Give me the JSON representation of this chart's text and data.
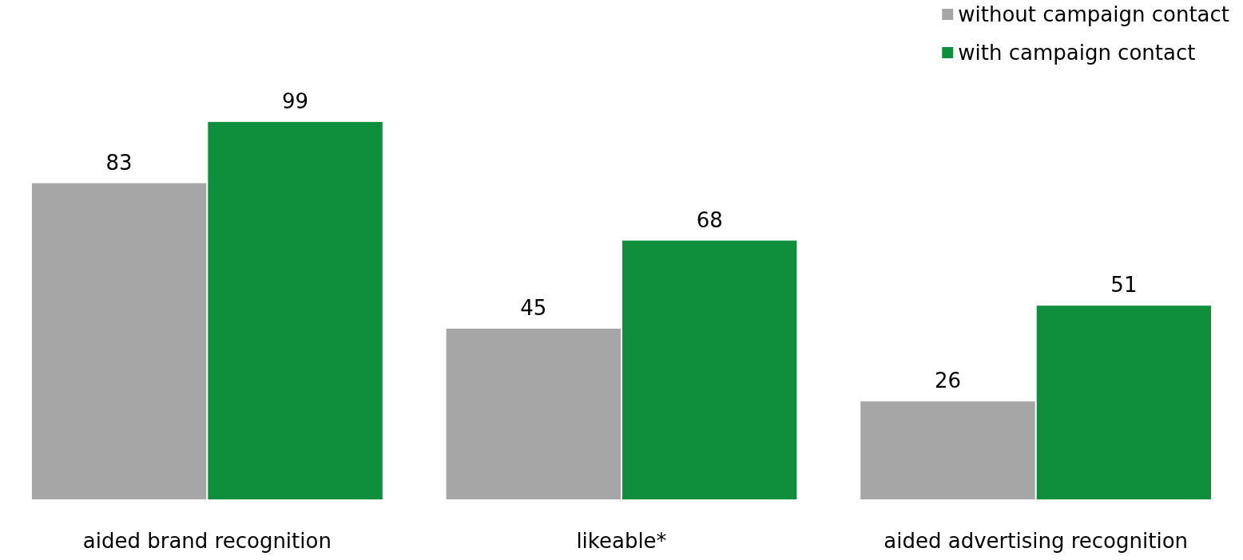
{
  "chart_data": {
    "type": "bar",
    "categories": [
      "aided brand recognition",
      "likeable*",
      "aided advertising recognition"
    ],
    "series": [
      {
        "name": "without campaign contact",
        "color": "#a5a6a5",
        "values": [
          83,
          45,
          26
        ]
      },
      {
        "name": "with campaign contact",
        "color": "#0f8f3c",
        "values": [
          99,
          68,
          51
        ]
      }
    ],
    "data_labels": true,
    "legend": "top right",
    "grid": false
  }
}
